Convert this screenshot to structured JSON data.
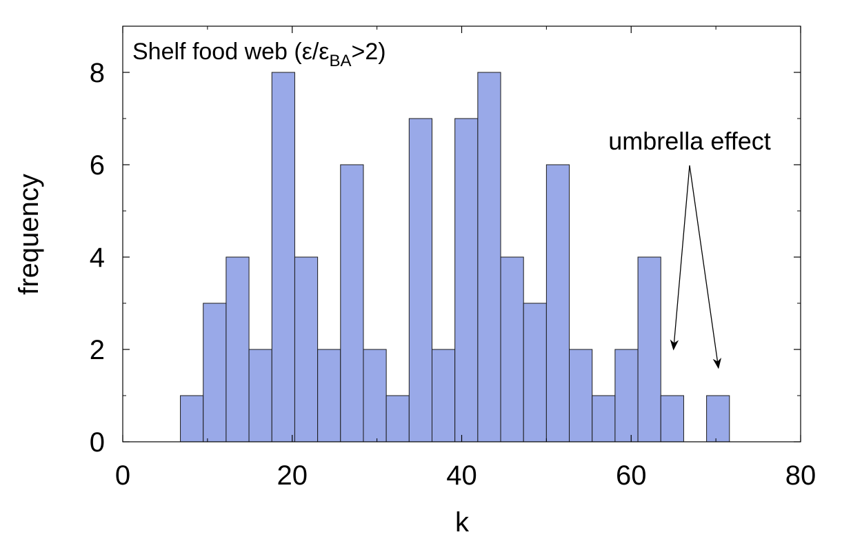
{
  "chart_data": {
    "type": "bar",
    "title_main": "Shelf food web (ε/ε",
    "title_sub": "BA",
    "title_tail": ">2)",
    "xlabel": "k",
    "ylabel": "frequency",
    "xlim": [
      0,
      80
    ],
    "ylim": [
      0,
      9
    ],
    "xticks": [
      0,
      20,
      40,
      60,
      80
    ],
    "yticks": [
      0,
      2,
      4,
      6,
      8
    ],
    "bin_width": 2.7,
    "bars": [
      {
        "x0": 6.8,
        "value": 1
      },
      {
        "x0": 9.5,
        "value": 3
      },
      {
        "x0": 12.2,
        "value": 4
      },
      {
        "x0": 14.9,
        "value": 2
      },
      {
        "x0": 17.6,
        "value": 8
      },
      {
        "x0": 20.3,
        "value": 4
      },
      {
        "x0": 23.0,
        "value": 2
      },
      {
        "x0": 25.7,
        "value": 6
      },
      {
        "x0": 28.4,
        "value": 2
      },
      {
        "x0": 31.1,
        "value": 1
      },
      {
        "x0": 33.8,
        "value": 7
      },
      {
        "x0": 36.5,
        "value": 2
      },
      {
        "x0": 39.2,
        "value": 7
      },
      {
        "x0": 41.9,
        "value": 8
      },
      {
        "x0": 44.6,
        "value": 4
      },
      {
        "x0": 47.3,
        "value": 3
      },
      {
        "x0": 50.0,
        "value": 6
      },
      {
        "x0": 52.7,
        "value": 2
      },
      {
        "x0": 55.4,
        "value": 1
      },
      {
        "x0": 58.1,
        "value": 2
      },
      {
        "x0": 60.8,
        "value": 4
      },
      {
        "x0": 63.5,
        "value": 1
      },
      {
        "x0": 68.9,
        "value": 1
      }
    ],
    "annotation": {
      "text": "umbrella effect",
      "arrow_targets": [
        {
          "x": 65.0,
          "y": 2.0
        },
        {
          "x": 70.3,
          "y": 1.6
        }
      ]
    },
    "colors": {
      "bar_fill": "#99a9e8",
      "bar_stroke": "#1a1a1a"
    }
  }
}
